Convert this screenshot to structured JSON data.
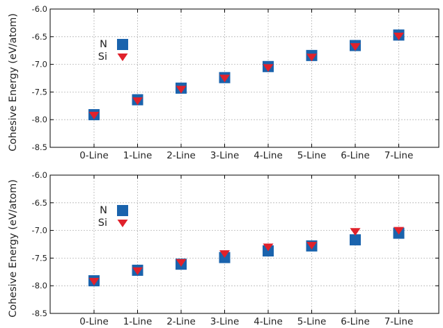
{
  "colors": {
    "N": "#1a63ad",
    "Si": "#e0212b",
    "grid": "#b5b5b5",
    "axis": "#000000"
  },
  "chart_data": [
    {
      "type": "scatter",
      "categories": [
        "0-Line",
        "1-Line",
        "2-Line",
        "3-Line",
        "4-Line",
        "5-Line",
        "6-Line",
        "7-Line"
      ],
      "ylabel": "Cohesive Energy (eV/atom)",
      "ylim": [
        -8.5,
        -6.0
      ],
      "yticks": [
        "-6.0",
        "-6.5",
        "-7.0",
        "-7.5",
        "-8.0",
        "-8.5"
      ],
      "ytick_values": [
        -6.0,
        -6.5,
        -7.0,
        -7.5,
        -8.0,
        -8.5
      ],
      "grid": true,
      "legend": "upper-left",
      "series": [
        {
          "name": "N",
          "marker": "square",
          "values": [
            -7.91,
            -7.64,
            -7.43,
            -7.24,
            -7.04,
            -6.84,
            -6.66,
            -6.47
          ]
        },
        {
          "name": "Si",
          "marker": "triangle-down",
          "values": [
            -7.92,
            -7.66,
            -7.45,
            -7.25,
            -7.06,
            -6.87,
            -6.68,
            -6.49
          ]
        }
      ]
    },
    {
      "type": "scatter",
      "categories": [
        "0-Line",
        "1-Line",
        "2-Line",
        "3-Line",
        "4-Line",
        "5-Line",
        "6-Line",
        "7-Line"
      ],
      "ylabel": "Cohesive Energy (eV/atom)",
      "ylim": [
        -8.5,
        -6.0
      ],
      "yticks": [
        "-6.0",
        "-6.5",
        "-7.0",
        "-7.5",
        "-8.0",
        "-8.5"
      ],
      "ytick_values": [
        -6.0,
        -6.5,
        -7.0,
        -7.5,
        -8.0,
        -8.5
      ],
      "grid": true,
      "legend": "upper-left",
      "series": [
        {
          "name": "N",
          "marker": "square",
          "values": [
            -7.91,
            -7.72,
            -7.61,
            -7.49,
            -7.37,
            -7.28,
            -7.17,
            -7.05
          ]
        },
        {
          "name": "Si",
          "marker": "triangle-down",
          "values": [
            -7.92,
            -7.73,
            -7.58,
            -7.42,
            -7.3,
            -7.27,
            -7.02,
            -7.0
          ]
        }
      ]
    }
  ]
}
